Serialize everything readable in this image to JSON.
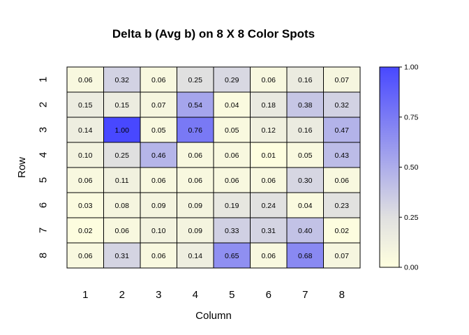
{
  "chart_data": {
    "type": "heatmap",
    "title": "Delta b (Avg b)  on 8 X 8 Color Spots",
    "xlabel": "Column",
    "ylabel": "Row",
    "x_categories": [
      "1",
      "2",
      "3",
      "4",
      "5",
      "6",
      "7",
      "8"
    ],
    "y_categories": [
      "1",
      "2",
      "3",
      "4",
      "5",
      "6",
      "7",
      "8"
    ],
    "values": [
      [
        0.06,
        0.32,
        0.06,
        0.25,
        0.29,
        0.06,
        0.16,
        0.07
      ],
      [
        0.15,
        0.15,
        0.07,
        0.54,
        0.04,
        0.18,
        0.38,
        0.32
      ],
      [
        0.14,
        1.0,
        0.05,
        0.76,
        0.05,
        0.12,
        0.16,
        0.47
      ],
      [
        0.1,
        0.25,
        0.46,
        0.06,
        0.06,
        0.01,
        0.05,
        0.43
      ],
      [
        0.06,
        0.11,
        0.06,
        0.06,
        0.06,
        0.06,
        0.3,
        0.06
      ],
      [
        0.03,
        0.08,
        0.09,
        0.09,
        0.19,
        0.24,
        0.04,
        0.23
      ],
      [
        0.02,
        0.06,
        0.1,
        0.09,
        0.33,
        0.31,
        0.4,
        0.02
      ],
      [
        0.06,
        0.31,
        0.06,
        0.14,
        0.65,
        0.06,
        0.68,
        0.07
      ]
    ],
    "value_labels": [
      [
        "0.06",
        "0.32",
        "0.06",
        "0.25",
        "0.29",
        "0.06",
        "0.16",
        "0.07"
      ],
      [
        "0.15",
        "0.15",
        "0.07",
        "0.54",
        "0.04",
        "0.18",
        "0.38",
        "0.32"
      ],
      [
        "0.14",
        "1.00",
        "0.05",
        "0.76",
        "0.05",
        "0.12",
        "0.16",
        "0.47"
      ],
      [
        "0.10",
        "0.25",
        "0.46",
        "0.06",
        "0.06",
        "0.01",
        "0.05",
        "0.43"
      ],
      [
        "0.06",
        "0.11",
        "0.06",
        "0.06",
        "0.06",
        "0.06",
        "0.30",
        "0.06"
      ],
      [
        "0.03",
        "0.08",
        "0.09",
        "0.09",
        "0.19",
        "0.24",
        "0.04",
        "0.23"
      ],
      [
        "0.02",
        "0.06",
        "0.10",
        "0.09",
        "0.33",
        "0.31",
        "0.40",
        "0.02"
      ],
      [
        "0.06",
        "0.31",
        "0.06",
        "0.14",
        "0.65",
        "0.06",
        "0.68",
        "0.07"
      ]
    ],
    "value_range": [
      0,
      1
    ],
    "colorscale": {
      "stops": [
        {
          "value": 0.0,
          "color": "#ffffdf"
        },
        {
          "value": 0.25,
          "color": "#e0e0e0"
        },
        {
          "value": 1.0,
          "color": "#4848ff"
        }
      ]
    },
    "colorbar": {
      "ticks": [
        0.0,
        0.25,
        0.5,
        0.75,
        1.0
      ],
      "tick_labels": [
        "0.00",
        "0.25",
        "0.50",
        "0.75",
        "1.00"
      ],
      "position": "right"
    },
    "grid": false,
    "cell_border_color": "#000000"
  }
}
